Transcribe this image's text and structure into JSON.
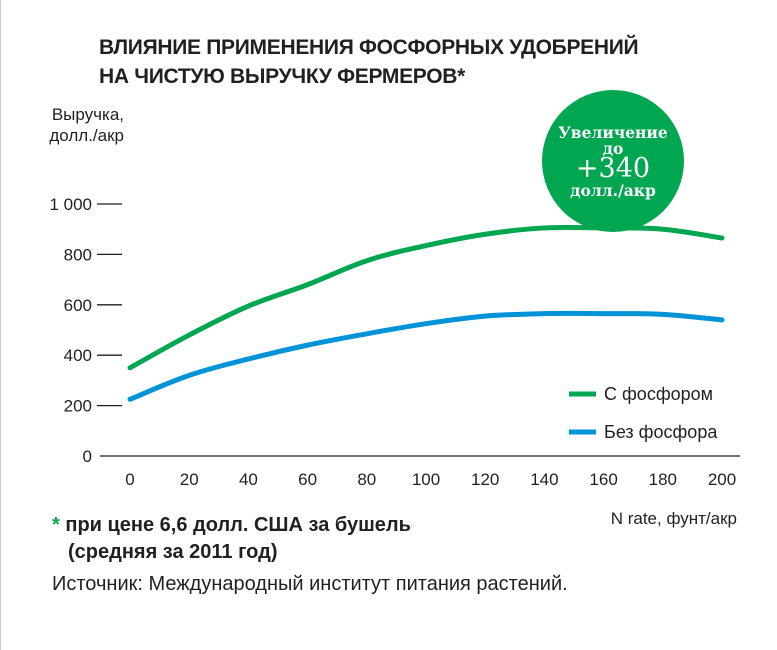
{
  "title_lines": [
    "ВЛИЯНИЕ ПРИМЕНЕНИЯ ФОСФОРНЫХ УДОБРЕНИЙ",
    "НА ЧИСТУЮ ВЫРУЧКУ ФЕРМЕРОВ*"
  ],
  "badge": {
    "line1": "Увеличение",
    "line2": "до",
    "value": "+340",
    "unit": "долл./акр",
    "color": "#00a650"
  },
  "footnote": {
    "star": "*",
    "line1": "при цене 6,6 долл. США за бушель",
    "line2": "(средняя за 2011 год)"
  },
  "source": "Источник: Международный институт питания растений.",
  "chart_data": {
    "type": "line",
    "title": "ВЛИЯНИЕ ПРИМЕНЕНИЯ ФОСФОРНЫХ УДОБРЕНИЙ НА ЧИСТУЮ ВЫРУЧКУ ФЕРМЕРОВ*",
    "ylabel_lines": [
      "Выручка,",
      "долл./акр"
    ],
    "xlabel": "N rate, фунт/акр",
    "x": [
      0,
      20,
      40,
      60,
      80,
      100,
      120,
      140,
      160,
      180,
      200
    ],
    "xlim": [
      0,
      200
    ],
    "ylim": [
      0,
      1000
    ],
    "y_ticks": [
      0,
      200,
      400,
      600,
      800,
      1000
    ],
    "y_tick_labels": [
      "0",
      "200",
      "400",
      "600",
      "800",
      "1 000"
    ],
    "x_tick_labels": [
      "0",
      "20",
      "40",
      "60",
      "80",
      "100",
      "120",
      "140",
      "160",
      "180",
      "200"
    ],
    "grid": false,
    "legend_position": "bottom-right",
    "series": [
      {
        "name": "С фосфором",
        "color": "#00a650",
        "values": [
          350,
          480,
          595,
          680,
          775,
          835,
          880,
          905,
          905,
          900,
          865
        ]
      },
      {
        "name": "Без фосфора",
        "color": "#0093d8",
        "values": [
          225,
          320,
          385,
          440,
          485,
          525,
          555,
          565,
          565,
          562,
          540
        ]
      }
    ]
  }
}
